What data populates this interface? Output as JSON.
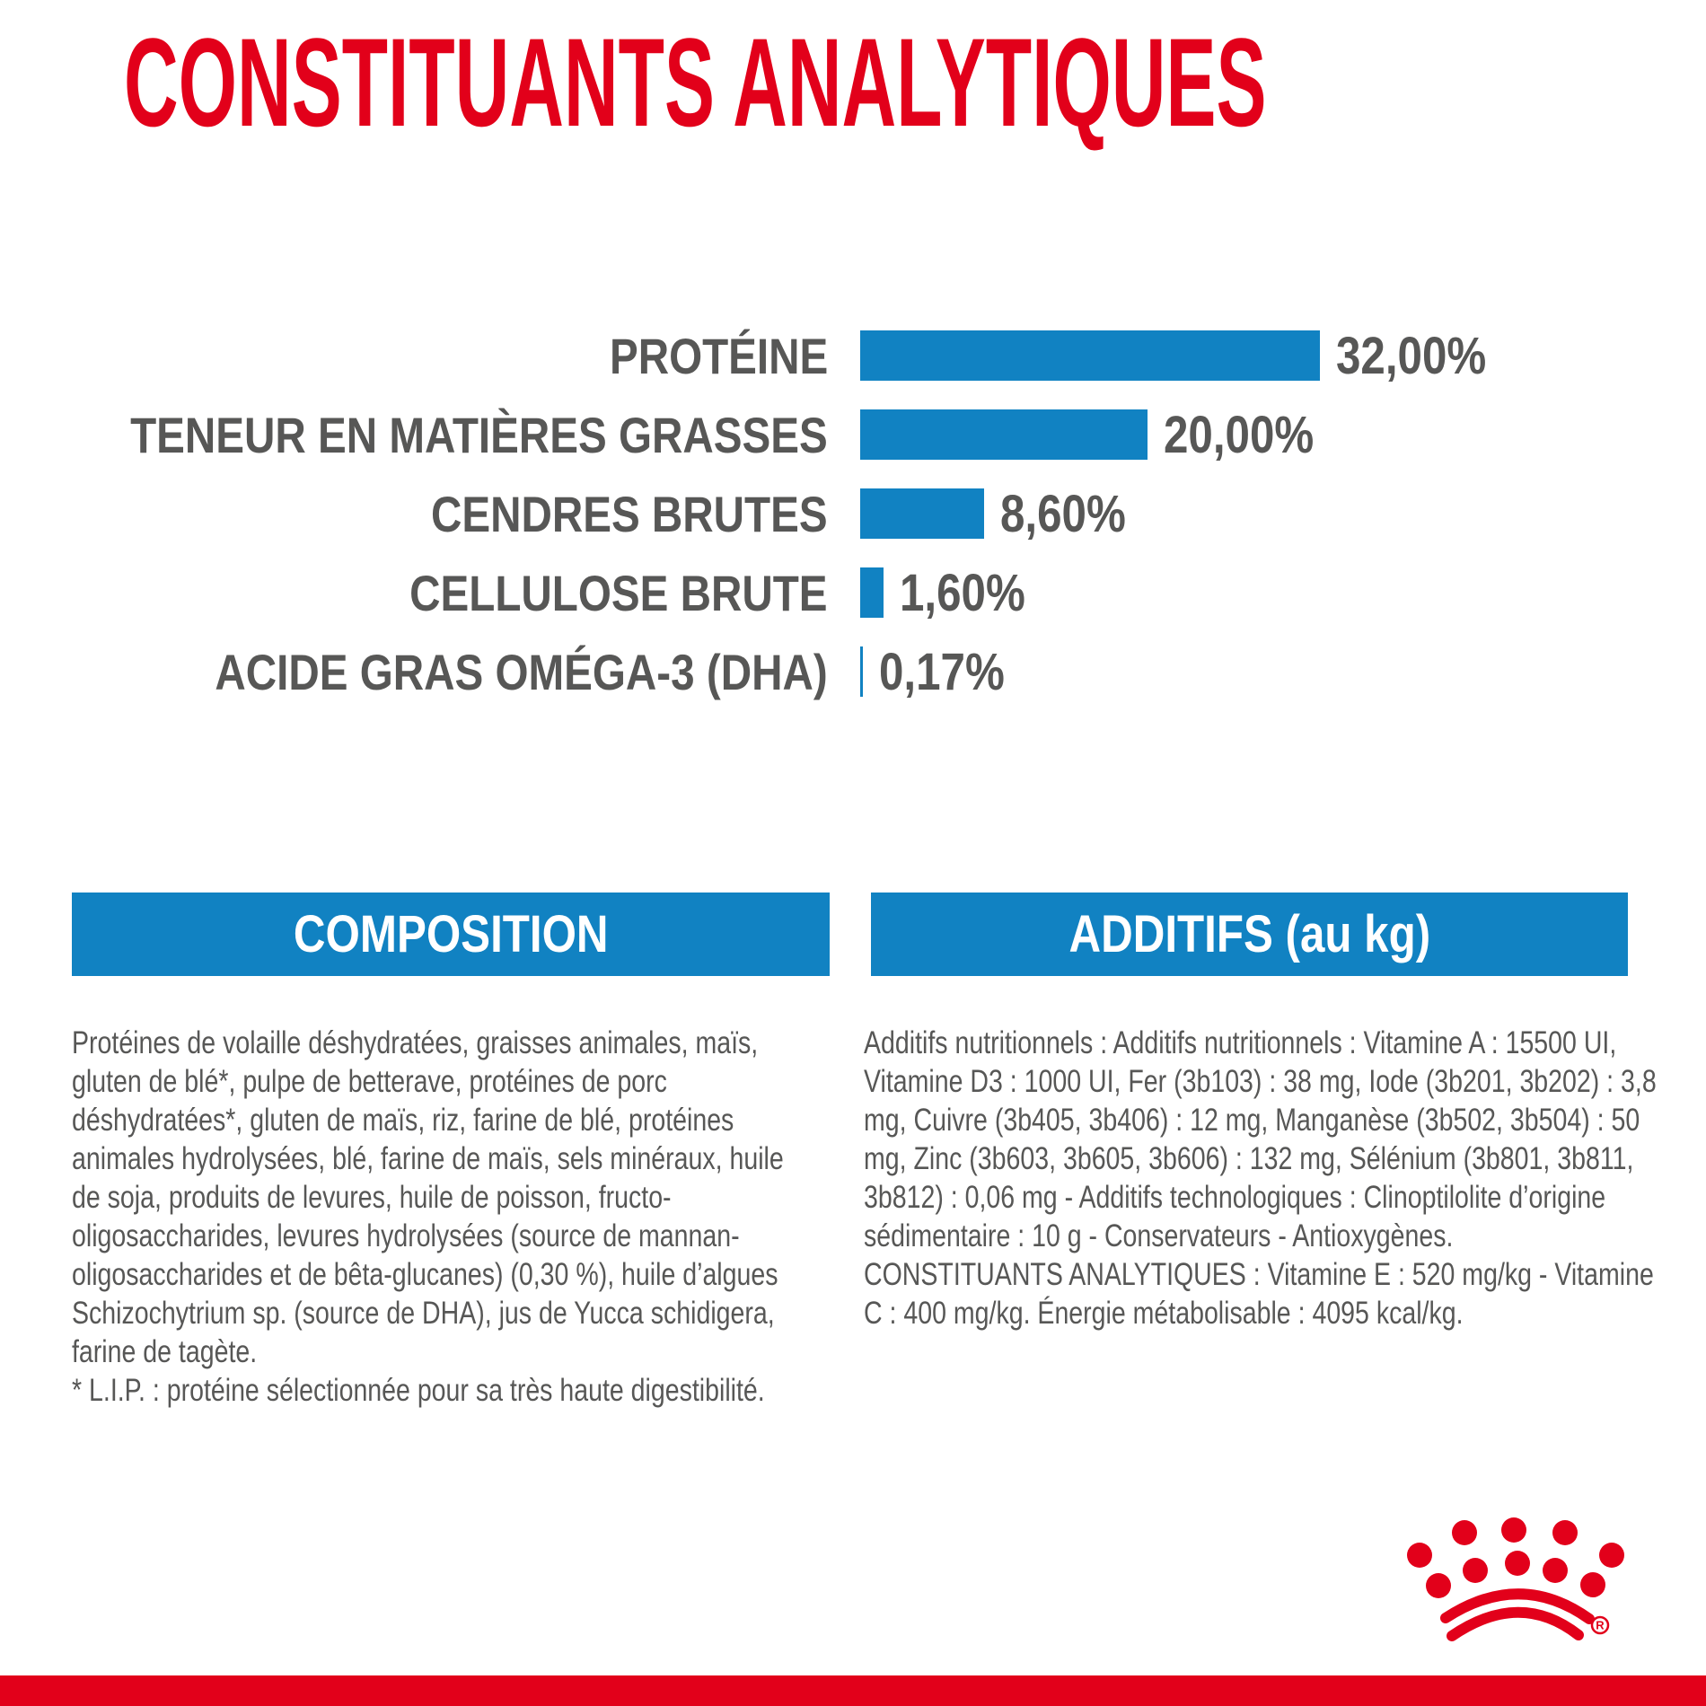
{
  "title": "CONSTITUANTS ANALYTIQUES",
  "colors": {
    "red": "#e2001a",
    "blue": "#1182c2",
    "gray": "#575756",
    "white": "#ffffff"
  },
  "chart_data": {
    "type": "bar",
    "orientation": "horizontal",
    "title": "CONSTITUANTS ANALYTIQUES",
    "categories": [
      "PROTÉINE",
      "TENEUR EN MATIÈRES GRASSES",
      "CENDRES BRUTES",
      "CELLULOSE BRUTE",
      "ACIDE GRAS OMÉGA-3 (DHA)"
    ],
    "values": [
      32.0,
      20.0,
      8.6,
      1.6,
      0.17
    ],
    "value_labels": [
      "32,00%",
      "20,00%",
      "8,60%",
      "1,60%",
      "0,17%"
    ],
    "unit": "%",
    "xlim": [
      0,
      32
    ],
    "bar_color": "#1182c2",
    "grid": false,
    "legend": false
  },
  "sections": {
    "composition": {
      "header": "COMPOSITION",
      "body": "Protéines de volaille déshydratées, graisses animales, maïs, gluten de blé*, pulpe de betterave, protéines de porc déshydratées*, gluten de maïs, riz, farine de blé, protéines animales hydrolysées, blé, farine de maïs, sels minéraux, huile de soja, produits de levures, huile de poisson, fructo-oligosaccharides, levures hydrolysées (source de mannan-oligosaccharides et de bêta-glucanes) (0,30 %), huile d’algues Schizochytrium sp. (source de DHA), jus de Yucca schidigera, farine de tagète.",
      "footnote": "* L.I.P. : protéine sélectionnée pour sa très haute digestibilité."
    },
    "additifs": {
      "header": "ADDITIFS (au kg)",
      "body": "Additifs nutritionnels : Additifs nutritionnels : Vitamine A : 15500 UI, Vitamine D3 : 1000 UI, Fer (3b103) : 38 mg, Iode (3b201, 3b202) : 3,8 mg, Cuivre (3b405, 3b406) : 12 mg, Manganèse (3b502, 3b504) : 50 mg, Zinc (3b603, 3b605, 3b606) : 132 mg, Sélénium (3b801, 3b811, 3b812) : 0,06 mg - Additifs technologiques : Clinoptilolite d’origine sédimentaire : 10 g - Conservateurs - Antioxygènes.",
      "analytiques": "CONSTITUANTS ANALYTIQUES : Vitamine E : 520 mg/kg - Vitamine C : 400 mg/kg. Énergie métabolisable : 4095 kcal/kg."
    }
  },
  "logo": {
    "name": "royal-canin-crown",
    "registered_mark": "®"
  }
}
